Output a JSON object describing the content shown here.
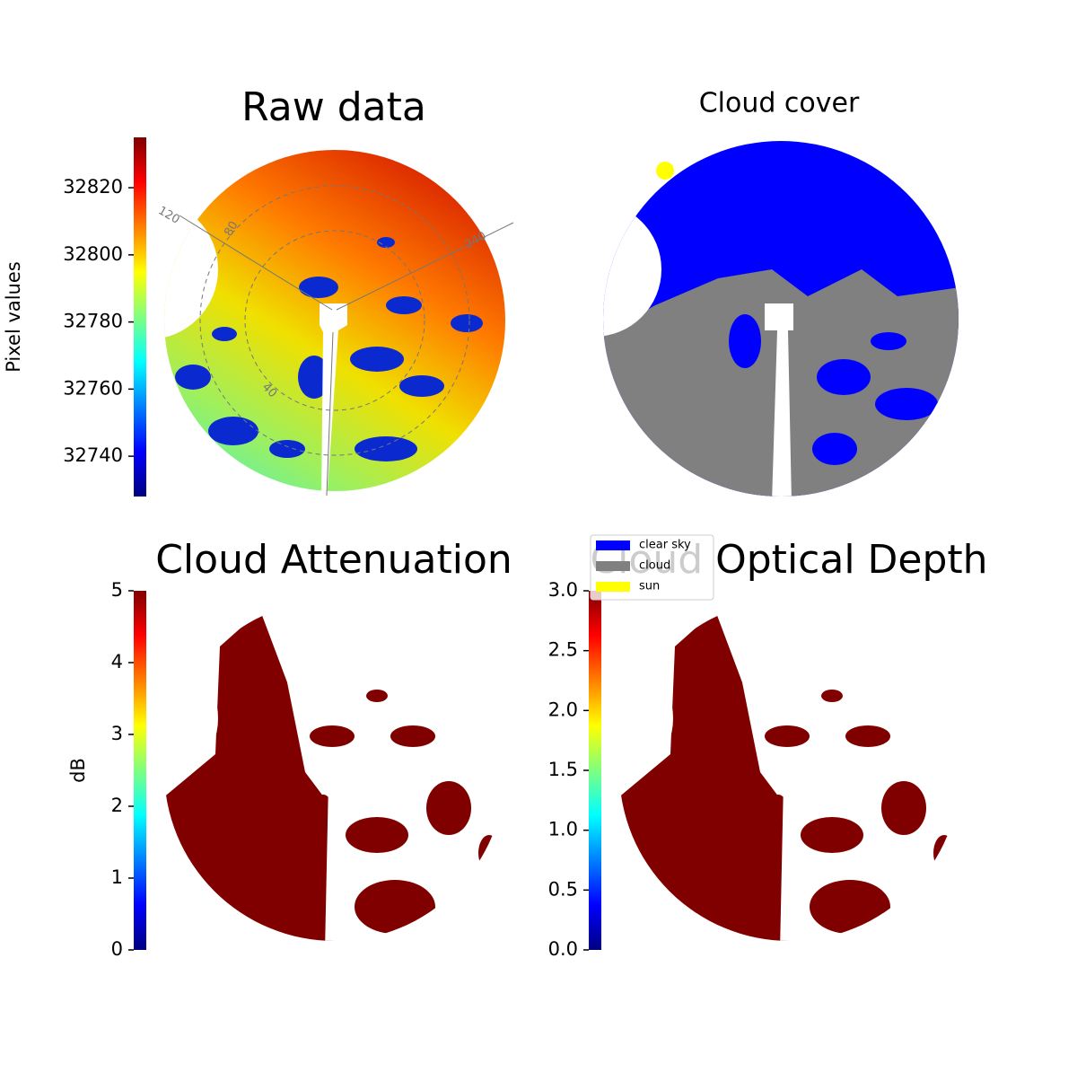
{
  "chart_data": [
    {
      "type": "image",
      "title": "Raw data",
      "label": "Pixel values",
      "ylim": [
        32728,
        32835
      ],
      "yticks": [
        32740,
        32760,
        32780,
        32800,
        32820
      ],
      "annotations": [
        "120",
        "80",
        "240",
        "40"
      ]
    },
    {
      "type": "image",
      "title": "Cloud cover",
      "series": [
        {
          "name": "clear sky",
          "color": "#0000ff"
        },
        {
          "name": "cloud",
          "color": "#808080"
        },
        {
          "name": "sun",
          "color": "#ffff00"
        }
      ]
    },
    {
      "type": "image",
      "title": "Cloud Attenuation",
      "label": "dB",
      "ylim": [
        0,
        5
      ],
      "yticks": [
        0,
        1,
        2,
        3,
        4,
        5
      ]
    },
    {
      "type": "image",
      "title": "Cloud Optical Depth",
      "ylim": [
        0,
        3
      ],
      "yticks": [
        {
          "value": 0,
          "label": "0.0"
        },
        0.5,
        {
          "value": 1,
          "label": "1.0"
        },
        1.5,
        {
          "value": 2,
          "label": "2.0"
        },
        2.5,
        {
          "value": 3,
          "label": "3.0"
        }
      ]
    }
  ]
}
